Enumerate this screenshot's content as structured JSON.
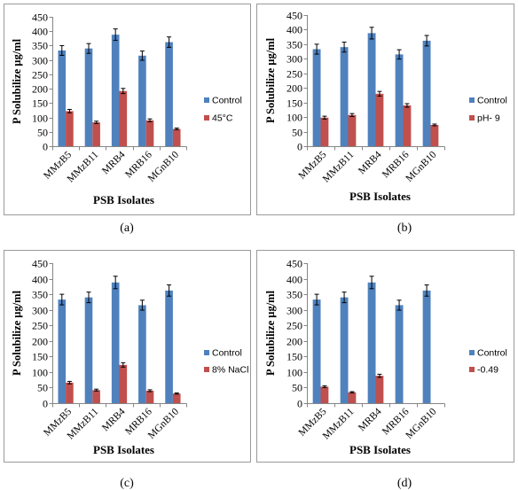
{
  "chart_data": [
    {
      "type": "bar",
      "caption": "(a)",
      "xlabel": "PSB Isolates",
      "ylabel": "P Solubilize µg/ml",
      "ylim": [
        0,
        450
      ],
      "yticks": [
        0,
        50,
        100,
        150,
        200,
        250,
        300,
        350,
        400,
        450
      ],
      "grid": false,
      "legend": "right",
      "categories": [
        "MMzB5",
        "MMzB11",
        "MRB4",
        "MRB16",
        "MGnB10"
      ],
      "series": [
        {
          "name": "Control",
          "color": "#4F81BD",
          "values": [
            333,
            340,
            388,
            315,
            362
          ],
          "error": [
            17,
            17,
            20,
            16,
            18
          ]
        },
        {
          "name": "45°C",
          "color": "#C0504D",
          "values": [
            122,
            83,
            192,
            90,
            60
          ],
          "error": [
            6,
            4,
            9,
            5,
            3
          ]
        }
      ]
    },
    {
      "type": "bar",
      "caption": "(b)",
      "xlabel": "PSB Isolates",
      "ylabel": "P Solubilize µg/ml",
      "ylim": [
        0,
        450
      ],
      "yticks": [
        0,
        50,
        100,
        150,
        200,
        250,
        300,
        350,
        400,
        450
      ],
      "grid": false,
      "legend": "right",
      "categories": [
        "MMzB5",
        "MMzB11",
        "MRB4",
        "MRB16",
        "MGnB10"
      ],
      "series": [
        {
          "name": "Control",
          "color": "#4F81BD",
          "values": [
            333,
            340,
            388,
            315,
            362
          ],
          "error": [
            17,
            17,
            20,
            16,
            18
          ]
        },
        {
          "name": "pH- 9",
          "color": "#C0504D",
          "values": [
            98,
            107,
            180,
            140,
            73
          ],
          "error": [
            5,
            5,
            8,
            6,
            3
          ]
        }
      ]
    },
    {
      "type": "bar",
      "caption": "(c)",
      "xlabel": "PSB Isolates",
      "ylabel": "P Solubilize µg/ml",
      "ylim": [
        0,
        450
      ],
      "yticks": [
        0,
        50,
        100,
        150,
        200,
        250,
        300,
        350,
        400,
        450
      ],
      "grid": false,
      "legend": "right",
      "categories": [
        "MMzB5",
        "MMzB11",
        "MRB4",
        "MRB16",
        "MGnB10"
      ],
      "series": [
        {
          "name": "Control",
          "color": "#4F81BD",
          "values": [
            333,
            340,
            388,
            315,
            362
          ],
          "error": [
            17,
            17,
            20,
            16,
            18
          ]
        },
        {
          "name": "8% NaCl",
          "color": "#C0504D",
          "values": [
            66,
            42,
            123,
            40,
            31
          ],
          "error": [
            4,
            3,
            7,
            3,
            2
          ]
        }
      ]
    },
    {
      "type": "bar",
      "caption": "(d)",
      "xlabel": "PSB Isolates",
      "ylabel": "P Solubilize µg/ml",
      "ylim": [
        0,
        450
      ],
      "yticks": [
        0,
        50,
        100,
        150,
        200,
        250,
        300,
        350,
        400,
        450
      ],
      "grid": false,
      "legend": "right",
      "categories": [
        "MMzB5",
        "MMzB11",
        "MRB4",
        "MRB16",
        "MGnB10"
      ],
      "series": [
        {
          "name": "Control",
          "color": "#4F81BD",
          "values": [
            333,
            340,
            388,
            315,
            362
          ],
          "error": [
            17,
            17,
            20,
            16,
            18
          ]
        },
        {
          "name": "-0.49",
          "color": "#C0504D",
          "values": [
            53,
            35,
            88,
            0,
            0
          ],
          "error": [
            3,
            2,
            5,
            0,
            0
          ]
        }
      ]
    }
  ]
}
